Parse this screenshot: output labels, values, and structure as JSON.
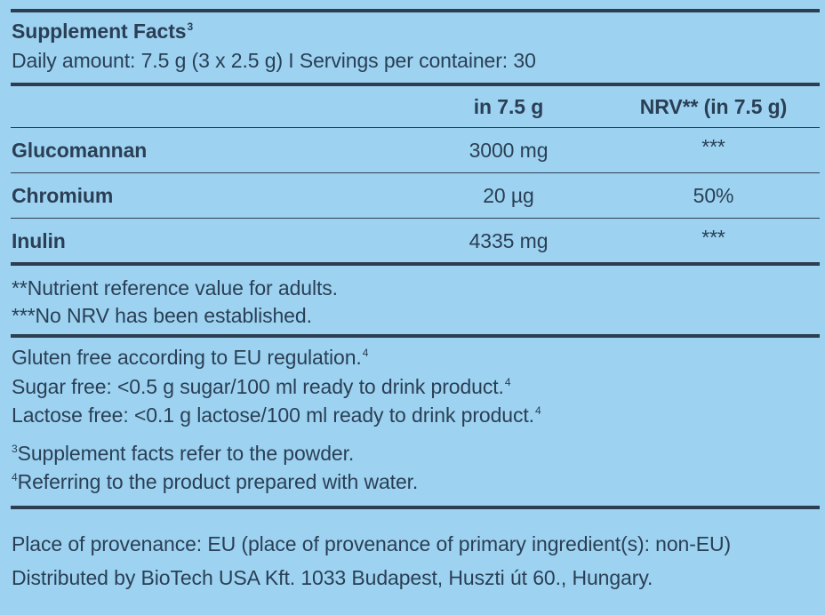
{
  "header": {
    "title": "Supplement Facts",
    "title_sup": "3",
    "subtitle": "Daily amount: 7.5 g (3 x 2.5 g) I Servings per container: 30"
  },
  "table": {
    "columns": [
      "in 7.5 g",
      "NRV** (in 7.5 g)"
    ],
    "rows": [
      {
        "name": "Glucomannan",
        "amount": "3000 mg",
        "nrv": "***"
      },
      {
        "name": "Chromium",
        "amount": "20 µg",
        "nrv": "50%"
      },
      {
        "name": "Inulin",
        "amount": "4335 mg",
        "nrv": "***"
      }
    ]
  },
  "footnotes": {
    "nrv_note": "**Nutrient reference value for adults.",
    "no_nrv_note": "***No NRV has been established."
  },
  "claims": {
    "gluten": "Gluten free according to EU regulation.",
    "sugar": "Sugar free: <0.5 g sugar/100 ml ready to drink product.",
    "lactose": "Lactose free: <0.1 g lactose/100 ml ready to drink product.",
    "claim_sup": "4"
  },
  "notes": {
    "note3_sup": "3",
    "note3": "Supplement facts refer to the powder.",
    "note4_sup": "4",
    "note4": "Referring to the product prepared with water."
  },
  "provenance": {
    "line1": "Place of provenance: EU (place of provenance of primary ingredient(s): non-EU)",
    "line2": "Distributed by BioTech USA Kft. 1033 Budapest, Huszti út 60., Hungary."
  },
  "colors": {
    "background": "#9dd3f1",
    "text": "#2a3f55",
    "rule": "#2c3e50"
  }
}
